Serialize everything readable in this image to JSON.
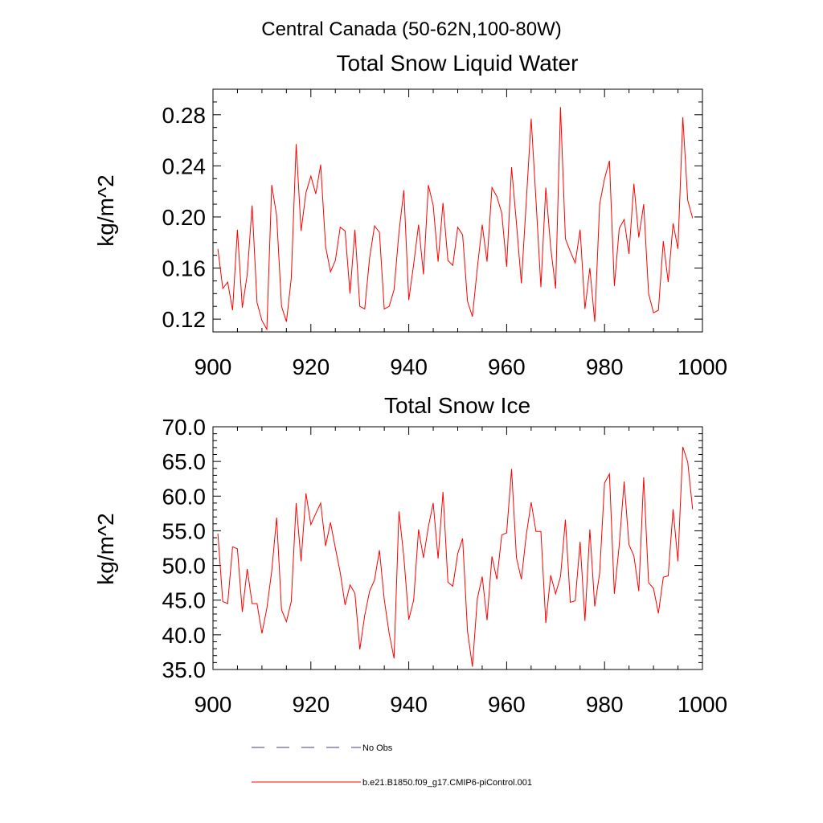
{
  "header": {
    "region_title": "Central Canada (50-62N,100-80W)"
  },
  "chart_data": [
    {
      "type": "line",
      "title": "Total Snow Liquid Water",
      "xlabel": "",
      "ylabel": "kg/m^2",
      "xlim": [
        900,
        1000
      ],
      "ylim": [
        0.11,
        0.3
      ],
      "xticks": [
        900,
        920,
        940,
        960,
        980,
        1000
      ],
      "yticks": [
        0.12,
        0.16,
        0.2,
        0.24,
        0.28
      ],
      "yminor_step": 0.01,
      "xminor_step": 5,
      "ytick_decimals": 2,
      "x_start": 901,
      "series": [
        {
          "name": "b.e21.B1850.f09_g17.CMIP6-piControl.001",
          "color": "#ff0000",
          "values": [
            0.175,
            0.144,
            0.149,
            0.127,
            0.19,
            0.129,
            0.155,
            0.209,
            0.133,
            0.119,
            0.112,
            0.225,
            0.201,
            0.13,
            0.118,
            0.152,
            0.257,
            0.189,
            0.219,
            0.232,
            0.218,
            0.241,
            0.177,
            0.157,
            0.166,
            0.192,
            0.189,
            0.14,
            0.19,
            0.13,
            0.128,
            0.168,
            0.193,
            0.188,
            0.128,
            0.13,
            0.143,
            0.188,
            0.221,
            0.135,
            0.163,
            0.194,
            0.155,
            0.225,
            0.209,
            0.165,
            0.211,
            0.166,
            0.162,
            0.192,
            0.186,
            0.134,
            0.122,
            0.16,
            0.194,
            0.165,
            0.223,
            0.216,
            0.203,
            0.161,
            0.239,
            0.195,
            0.148,
            0.212,
            0.277,
            0.213,
            0.145,
            0.223,
            0.176,
            0.144,
            0.286,
            0.183,
            0.173,
            0.164,
            0.19,
            0.128,
            0.16,
            0.118,
            0.21,
            0.23,
            0.244,
            0.146,
            0.191,
            0.198,
            0.171,
            0.226,
            0.184,
            0.21,
            0.14,
            0.125,
            0.127,
            0.181,
            0.149,
            0.195,
            0.175,
            0.278,
            0.213,
            0.199
          ]
        }
      ]
    },
    {
      "type": "line",
      "title": "Total Snow Ice",
      "xlabel": "",
      "ylabel": "kg/m^2",
      "xlim": [
        900,
        1000
      ],
      "ylim": [
        35,
        70
      ],
      "xticks": [
        900,
        920,
        940,
        960,
        980,
        1000
      ],
      "yticks": [
        35,
        40,
        45,
        50,
        55,
        60,
        65,
        70
      ],
      "yminor_step": 1,
      "xminor_step": 5,
      "ytick_decimals": 1,
      "x_start": 901,
      "series": [
        {
          "name": "b.e21.B1850.f09_g17.CMIP6-piControl.001",
          "color": "#ff0000",
          "values": [
            54.6,
            44.8,
            44.5,
            52.7,
            52.4,
            43.3,
            49.5,
            44.5,
            44.5,
            40.2,
            43.8,
            49.2,
            56.9,
            43.6,
            41.9,
            44.8,
            59.0,
            50.6,
            60.4,
            55.9,
            57.5,
            59.0,
            52.8,
            56.2,
            52.5,
            49.0,
            44.3,
            47.2,
            46.0,
            37.9,
            42.8,
            46.3,
            47.9,
            52.2,
            45.1,
            40.2,
            36.6,
            57.8,
            51.2,
            42.2,
            45.0,
            55.2,
            51.1,
            55.6,
            59.0,
            51.0,
            60.6,
            47.6,
            47.0,
            51.7,
            53.9,
            40.5,
            35.4,
            45.2,
            48.4,
            42.1,
            51.3,
            48.0,
            54.4,
            54.7,
            63.9,
            51.1,
            48.0,
            54.4,
            59.1,
            54.9,
            54.9,
            41.7,
            48.6,
            45.9,
            48.4,
            56.6,
            44.7,
            44.9,
            53.4,
            42.0,
            55.2,
            44.1,
            48.9,
            61.9,
            63.2,
            45.9,
            53.0,
            62.1,
            53.0,
            51.4,
            46.3,
            62.7,
            47.5,
            46.7,
            43.1,
            48.3,
            48.5,
            58.1,
            50.6,
            67.1,
            64.9,
            58.1
          ]
        }
      ]
    }
  ],
  "legend": {
    "position": "bottom-center",
    "items": [
      {
        "label": "No Obs",
        "color": "#3b3b9f",
        "dashed": true
      },
      {
        "label": "b.e21.B1850.f09_g17.CMIP6-piControl.001",
        "color": "#ff0000",
        "dashed": false
      }
    ]
  }
}
